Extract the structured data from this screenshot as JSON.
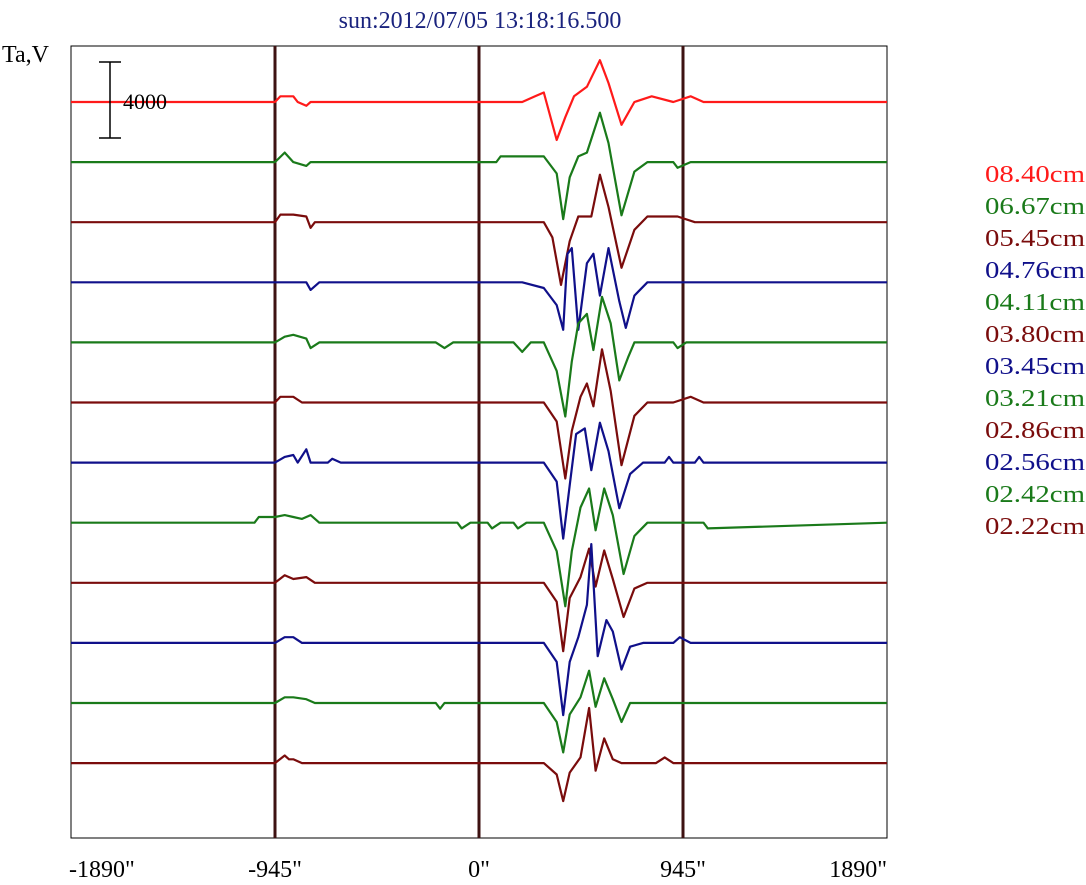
{
  "title": "sun:2012/07/05 13:18:16.500",
  "ylabel": "Ta,V",
  "scale_bar": {
    "label": "4000",
    "value": 4000
  },
  "chart_data": {
    "type": "line",
    "title": "sun:2012/07/05 13:18:16.500",
    "ylabel": "Ta,V",
    "xlabel": "",
    "xlim": [
      -1890,
      1890
    ],
    "x_ticks": [
      -1890,
      -945,
      0,
      945,
      1890
    ],
    "x_tick_labels": [
      "-1890\"",
      "-945\"",
      "0\"",
      "945\"",
      "1890\""
    ],
    "vertical_lines": [
      -945,
      0,
      945
    ],
    "grid": false,
    "legend_position": "right",
    "series": [
      {
        "name": "08.40cm",
        "color": "#ff1a1a",
        "baseline": 0,
        "points": [
          [
            -1890,
            0
          ],
          [
            -945,
            0
          ],
          [
            -920,
            300
          ],
          [
            -860,
            300
          ],
          [
            -840,
            0
          ],
          [
            -800,
            -200
          ],
          [
            -780,
            0
          ],
          [
            200,
            0
          ],
          [
            260,
            300
          ],
          [
            300,
            500
          ],
          [
            360,
            -2000
          ],
          [
            400,
            -800
          ],
          [
            440,
            300
          ],
          [
            500,
            800
          ],
          [
            560,
            2200
          ],
          [
            600,
            1000
          ],
          [
            660,
            -1200
          ],
          [
            720,
            0
          ],
          [
            800,
            300
          ],
          [
            900,
            0
          ],
          [
            980,
            300
          ],
          [
            1040,
            0
          ],
          [
            1890,
            0
          ]
        ]
      },
      {
        "name": "06.67cm",
        "color": "#1a7a1a",
        "baseline": 0,
        "points": [
          [
            -1890,
            0
          ],
          [
            -945,
            0
          ],
          [
            -900,
            500
          ],
          [
            -860,
            0
          ],
          [
            -800,
            -200
          ],
          [
            -780,
            0
          ],
          [
            80,
            0
          ],
          [
            100,
            300
          ],
          [
            200,
            300
          ],
          [
            300,
            300
          ],
          [
            360,
            -600
          ],
          [
            390,
            -3000
          ],
          [
            420,
            -800
          ],
          [
            460,
            300
          ],
          [
            500,
            500
          ],
          [
            560,
            2600
          ],
          [
            600,
            1000
          ],
          [
            660,
            -2800
          ],
          [
            720,
            -500
          ],
          [
            780,
            0
          ],
          [
            900,
            0
          ],
          [
            920,
            -300
          ],
          [
            980,
            0
          ],
          [
            1890,
            0
          ]
        ]
      },
      {
        "name": "05.45cm",
        "color": "#7a0c0c",
        "baseline": 0,
        "points": [
          [
            -1890,
            0
          ],
          [
            -945,
            0
          ],
          [
            -920,
            400
          ],
          [
            -860,
            400
          ],
          [
            -800,
            300
          ],
          [
            -780,
            -300
          ],
          [
            -760,
            0
          ],
          [
            200,
            0
          ],
          [
            300,
            0
          ],
          [
            340,
            -800
          ],
          [
            380,
            -3300
          ],
          [
            420,
            -1000
          ],
          [
            460,
            300
          ],
          [
            520,
            300
          ],
          [
            560,
            2500
          ],
          [
            600,
            800
          ],
          [
            660,
            -2400
          ],
          [
            720,
            -400
          ],
          [
            780,
            300
          ],
          [
            920,
            300
          ],
          [
            1000,
            0
          ],
          [
            1890,
            0
          ]
        ]
      },
      {
        "name": "04.76cm",
        "color": "#10108a",
        "baseline": 0,
        "points": [
          [
            -1890,
            0
          ],
          [
            -945,
            0
          ],
          [
            -800,
            0
          ],
          [
            -780,
            -400
          ],
          [
            -740,
            0
          ],
          [
            200,
            0
          ],
          [
            300,
            -300
          ],
          [
            360,
            -1200
          ],
          [
            390,
            -2500
          ],
          [
            410,
            1500
          ],
          [
            430,
            1800
          ],
          [
            460,
            -2500
          ],
          [
            500,
            1000
          ],
          [
            530,
            1500
          ],
          [
            560,
            -700
          ],
          [
            600,
            1800
          ],
          [
            650,
            -1000
          ],
          [
            680,
            -2400
          ],
          [
            720,
            -700
          ],
          [
            780,
            0
          ],
          [
            1890,
            0
          ]
        ]
      },
      {
        "name": "04.11cm",
        "color": "#1a7a1a",
        "baseline": 0,
        "points": [
          [
            -1890,
            0
          ],
          [
            -945,
            0
          ],
          [
            -900,
            300
          ],
          [
            -860,
            400
          ],
          [
            -800,
            200
          ],
          [
            -780,
            -300
          ],
          [
            -740,
            0
          ],
          [
            -200,
            0
          ],
          [
            -160,
            -300
          ],
          [
            -120,
            0
          ],
          [
            160,
            0
          ],
          [
            200,
            -500
          ],
          [
            240,
            0
          ],
          [
            300,
            0
          ],
          [
            360,
            -1500
          ],
          [
            400,
            -3900
          ],
          [
            430,
            -1000
          ],
          [
            460,
            1000
          ],
          [
            500,
            1500
          ],
          [
            530,
            -400
          ],
          [
            570,
            2400
          ],
          [
            610,
            1000
          ],
          [
            650,
            -2000
          ],
          [
            690,
            -800
          ],
          [
            720,
            0
          ],
          [
            900,
            0
          ],
          [
            920,
            -300
          ],
          [
            960,
            0
          ],
          [
            1890,
            0
          ]
        ]
      },
      {
        "name": "03.80cm",
        "color": "#7a0c0c",
        "baseline": 0,
        "points": [
          [
            -1890,
            0
          ],
          [
            -945,
            0
          ],
          [
            -920,
            300
          ],
          [
            -860,
            300
          ],
          [
            -820,
            0
          ],
          [
            300,
            0
          ],
          [
            360,
            -1000
          ],
          [
            400,
            -4000
          ],
          [
            430,
            -1500
          ],
          [
            470,
            300
          ],
          [
            500,
            1000
          ],
          [
            530,
            -200
          ],
          [
            570,
            2800
          ],
          [
            610,
            600
          ],
          [
            660,
            -3300
          ],
          [
            720,
            -700
          ],
          [
            780,
            0
          ],
          [
            900,
            0
          ],
          [
            980,
            300
          ],
          [
            1040,
            0
          ],
          [
            1890,
            0
          ]
        ]
      },
      {
        "name": "03.45cm",
        "color": "#10108a",
        "baseline": 0,
        "points": [
          [
            -1890,
            0
          ],
          [
            -945,
            0
          ],
          [
            -900,
            300
          ],
          [
            -860,
            400
          ],
          [
            -840,
            0
          ],
          [
            -800,
            700
          ],
          [
            -780,
            0
          ],
          [
            -700,
            0
          ],
          [
            -680,
            200
          ],
          [
            -640,
            0
          ],
          [
            300,
            0
          ],
          [
            360,
            -1000
          ],
          [
            390,
            -4000
          ],
          [
            420,
            -1200
          ],
          [
            450,
            1500
          ],
          [
            490,
            1800
          ],
          [
            520,
            -400
          ],
          [
            560,
            2100
          ],
          [
            600,
            600
          ],
          [
            650,
            -2400
          ],
          [
            700,
            -600
          ],
          [
            760,
            0
          ],
          [
            860,
            0
          ],
          [
            880,
            300
          ],
          [
            900,
            0
          ],
          [
            1000,
            0
          ],
          [
            1020,
            300
          ],
          [
            1040,
            0
          ],
          [
            1890,
            0
          ]
        ]
      },
      {
        "name": "03.21cm",
        "color": "#1a7a1a",
        "baseline": 0,
        "points": [
          [
            -1890,
            0
          ],
          [
            -1040,
            0
          ],
          [
            -1020,
            300
          ],
          [
            -945,
            300
          ],
          [
            -900,
            400
          ],
          [
            -860,
            300
          ],
          [
            -820,
            200
          ],
          [
            -780,
            400
          ],
          [
            -740,
            0
          ],
          [
            -100,
            0
          ],
          [
            -80,
            -300
          ],
          [
            -40,
            0
          ],
          [
            40,
            0
          ],
          [
            60,
            -300
          ],
          [
            100,
            0
          ],
          [
            160,
            0
          ],
          [
            180,
            -300
          ],
          [
            220,
            0
          ],
          [
            300,
            0
          ],
          [
            360,
            -1500
          ],
          [
            400,
            -4400
          ],
          [
            430,
            -1500
          ],
          [
            470,
            800
          ],
          [
            510,
            1800
          ],
          [
            540,
            -400
          ],
          [
            580,
            1800
          ],
          [
            620,
            400
          ],
          [
            670,
            -2700
          ],
          [
            720,
            -700
          ],
          [
            780,
            0
          ],
          [
            1040,
            0
          ],
          [
            1060,
            -300
          ],
          [
            1890,
            0
          ]
        ]
      },
      {
        "name": "02.86cm",
        "color": "#7a0c0c",
        "baseline": 0,
        "points": [
          [
            -1890,
            0
          ],
          [
            -945,
            0
          ],
          [
            -900,
            400
          ],
          [
            -860,
            200
          ],
          [
            -800,
            300
          ],
          [
            -760,
            0
          ],
          [
            800,
            0
          ],
          [
            300,
            0
          ],
          [
            360,
            -1000
          ],
          [
            390,
            -3600
          ],
          [
            420,
            -800
          ],
          [
            470,
            300
          ],
          [
            510,
            1800
          ],
          [
            540,
            -200
          ],
          [
            580,
            1700
          ],
          [
            620,
            200
          ],
          [
            670,
            -1800
          ],
          [
            720,
            -300
          ],
          [
            780,
            0
          ],
          [
            1890,
            0
          ]
        ]
      },
      {
        "name": "02.56cm",
        "color": "#10108a",
        "baseline": 0,
        "points": [
          [
            -1890,
            0
          ],
          [
            -945,
            0
          ],
          [
            -900,
            300
          ],
          [
            -860,
            300
          ],
          [
            -820,
            0
          ],
          [
            300,
            0
          ],
          [
            360,
            -1000
          ],
          [
            390,
            -3800
          ],
          [
            420,
            -1000
          ],
          [
            460,
            300
          ],
          [
            500,
            2000
          ],
          [
            520,
            5200
          ],
          [
            550,
            -700
          ],
          [
            590,
            1200
          ],
          [
            620,
            600
          ],
          [
            660,
            -1400
          ],
          [
            700,
            -200
          ],
          [
            760,
            0
          ],
          [
            900,
            0
          ],
          [
            930,
            300
          ],
          [
            980,
            0
          ],
          [
            1890,
            0
          ]
        ]
      },
      {
        "name": "02.42cm",
        "color": "#1a7a1a",
        "baseline": 0,
        "points": [
          [
            -1890,
            0
          ],
          [
            -945,
            0
          ],
          [
            -900,
            300
          ],
          [
            -860,
            300
          ],
          [
            -800,
            200
          ],
          [
            -760,
            0
          ],
          [
            -200,
            0
          ],
          [
            -180,
            -300
          ],
          [
            -160,
            0
          ],
          [
            300,
            0
          ],
          [
            360,
            -1000
          ],
          [
            390,
            -2600
          ],
          [
            420,
            -600
          ],
          [
            470,
            300
          ],
          [
            510,
            1700
          ],
          [
            540,
            -200
          ],
          [
            580,
            1300
          ],
          [
            620,
            200
          ],
          [
            660,
            -1000
          ],
          [
            700,
            0
          ],
          [
            1890,
            0
          ]
        ]
      },
      {
        "name": "02.22cm",
        "color": "#7a0c0c",
        "baseline": 0,
        "points": [
          [
            -1890,
            0
          ],
          [
            -945,
            0
          ],
          [
            -900,
            400
          ],
          [
            -880,
            200
          ],
          [
            -860,
            200
          ],
          [
            -820,
            0
          ],
          [
            300,
            0
          ],
          [
            360,
            -600
          ],
          [
            390,
            -2000
          ],
          [
            420,
            -500
          ],
          [
            470,
            300
          ],
          [
            510,
            2900
          ],
          [
            540,
            -400
          ],
          [
            580,
            1300
          ],
          [
            620,
            200
          ],
          [
            660,
            0
          ],
          [
            820,
            0
          ],
          [
            860,
            300
          ],
          [
            900,
            0
          ],
          [
            1890,
            0
          ]
        ]
      }
    ]
  }
}
